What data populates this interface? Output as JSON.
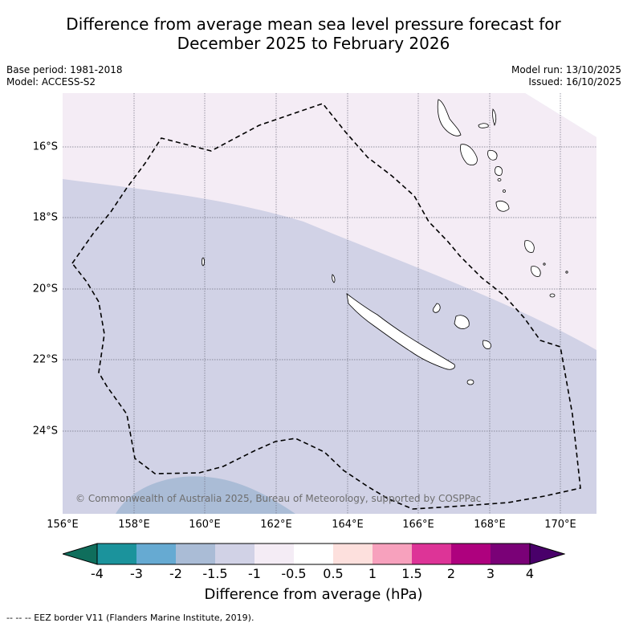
{
  "title_line1": "Difference from average mean sea level pressure forecast for",
  "title_line2": "December 2025 to February 2026",
  "meta": {
    "base_period": "Base period: 1981-2018",
    "model": "Model: ACCESS-S2",
    "model_run": "Model run: 13/10/2025",
    "issued": "Issued: 16/10/2025"
  },
  "map": {
    "latitude_labels": [
      "16°S",
      "18°S",
      "20°S",
      "22°S",
      "24°S"
    ],
    "longitude_labels": [
      "156°E",
      "158°E",
      "160°E",
      "162°E",
      "164°E",
      "166°E",
      "168°E",
      "170°E"
    ],
    "copyright": "© Commonwealth of Australia 2025, Bureau of Meteorology, supported by COSPPac"
  },
  "colorbar": {
    "title": "Difference from average (hPa)",
    "tick_labels": [
      "-4",
      "-3",
      "-2",
      "-1.5",
      "-1",
      "-0.5",
      "0.5",
      "1",
      "1.5",
      "2",
      "3",
      "4"
    ],
    "colors": [
      "#0f6e5c",
      "#1b939c",
      "#66aad2",
      "#aabcd6",
      "#d1d2e6",
      "#f4ecf5",
      "#ffffff",
      "#fde0dd",
      "#f7a1bd",
      "#dd3497",
      "#ae017e",
      "#7a0177",
      "#49006a"
    ]
  },
  "footnote": "-- -- -- EEZ border V11 (Flanders Marine Institute, 2019)."
}
